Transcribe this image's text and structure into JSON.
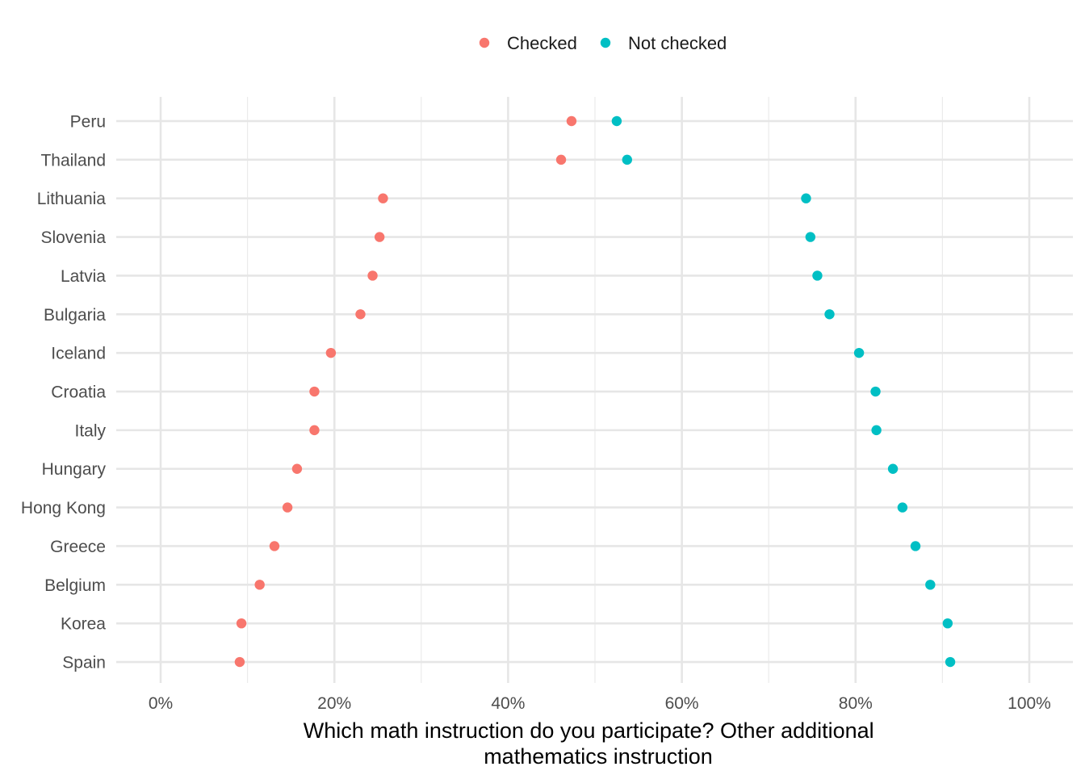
{
  "chart_data": {
    "type": "scatter",
    "title": "",
    "xlabel_lines": [
      "Which math instruction do you participate? Other additional",
      "mathematics instruction"
    ],
    "ylabel": "",
    "xlim": [
      -0.06,
      1.045
    ],
    "x_ticks": [
      0,
      0.2,
      0.4,
      0.6,
      0.8,
      1.0
    ],
    "x_tick_labels": [
      "0%",
      "20%",
      "40%",
      "60%",
      "80%",
      "100%"
    ],
    "categories": [
      "Peru",
      "Thailand",
      "Lithuania",
      "Slovenia",
      "Latvia",
      "Bulgaria",
      "Iceland",
      "Croatia",
      "Italy",
      "Hungary",
      "Hong Kong",
      "Greece",
      "Belgium",
      "Korea",
      "Spain"
    ],
    "series": [
      {
        "name": "Checked",
        "color": "#F8766D",
        "values": [
          0.473,
          0.461,
          0.256,
          0.252,
          0.244,
          0.23,
          0.196,
          0.177,
          0.177,
          0.157,
          0.146,
          0.131,
          0.114,
          0.093,
          0.091
        ]
      },
      {
        "name": "Not checked",
        "color": "#00BFC4",
        "values": [
          0.525,
          0.537,
          0.743,
          0.748,
          0.756,
          0.77,
          0.804,
          0.823,
          0.824,
          0.843,
          0.854,
          0.869,
          0.886,
          0.906,
          0.909
        ]
      }
    ],
    "legend_position": "top",
    "grid": true
  }
}
